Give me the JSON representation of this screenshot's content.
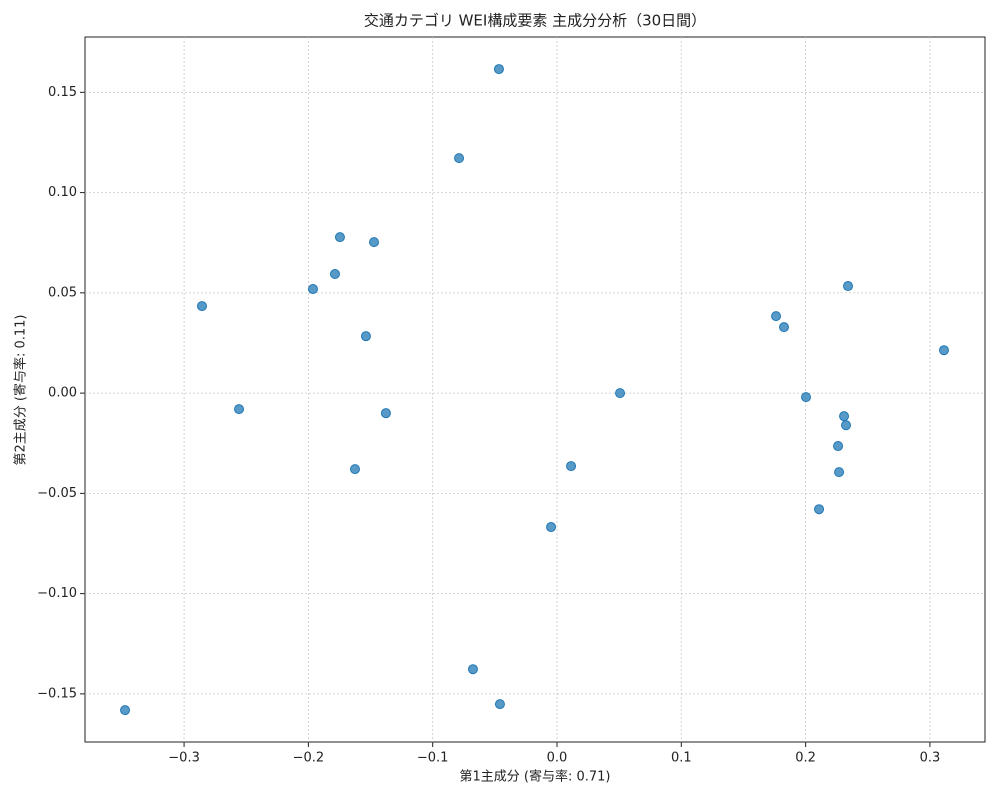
{
  "chart_data": {
    "type": "scatter",
    "title": "交通カテゴリ WEI構成要素 主成分分析（30日間）",
    "x_label": "第1主成分 (寄与率: 0.71)",
    "y_label": "第2主成分 (寄与率: 0.11)",
    "color": "#1f77b4",
    "grid": true,
    "xlim": [
      -0.3797,
      0.3443
    ],
    "ylim": [
      -0.174,
      0.1776
    ],
    "xticks": [
      {
        "value": -0.3,
        "label": "−0.3"
      },
      {
        "value": -0.2,
        "label": "−0.2"
      },
      {
        "value": -0.1,
        "label": "−0.1"
      },
      {
        "value": 0,
        "label": "0.0"
      },
      {
        "value": 0.1,
        "label": "0.1"
      },
      {
        "value": 0.2,
        "label": "0.2"
      },
      {
        "value": 0.3,
        "label": "0.3"
      }
    ],
    "yticks": [
      {
        "value": -0.15,
        "label": "−0.15"
      },
      {
        "value": -0.1,
        "label": "−0.10"
      },
      {
        "value": -0.05,
        "label": "−0.05"
      },
      {
        "value": 0,
        "label": "0.00"
      },
      {
        "value": 0.05,
        "label": "0.05"
      },
      {
        "value": 0.1,
        "label": "0.10"
      },
      0.15
    ],
    "x": [
      -0.0467,
      -0.0788,
      -0.1746,
      -0.1472,
      -0.1786,
      -0.1963,
      -0.2856,
      -0.1537,
      -0.2558,
      -0.1376,
      -0.1625,
      0.0507,
      0.0113,
      -0.0048,
      -0.0676,
      -0.0459,
      -0.3475,
      0.2341,
      0.1762,
      0.1826,
      0.3113,
      0.2003,
      0.2309,
      0.2325,
      0.2261,
      0.2269,
      0.2108
    ],
    "values": [
      0.1616,
      0.1172,
      0.0778,
      0.0753,
      0.0594,
      0.0519,
      0.0434,
      0.0284,
      -0.008,
      -0.01,
      -0.0379,
      0.0,
      -0.0364,
      -0.0668,
      -0.1377,
      -0.1551,
      -0.1581,
      0.0534,
      0.0384,
      0.0329,
      0.0214,
      -0.002,
      -0.0115,
      -0.016,
      -0.0264,
      -0.0394,
      -0.0579
    ]
  }
}
